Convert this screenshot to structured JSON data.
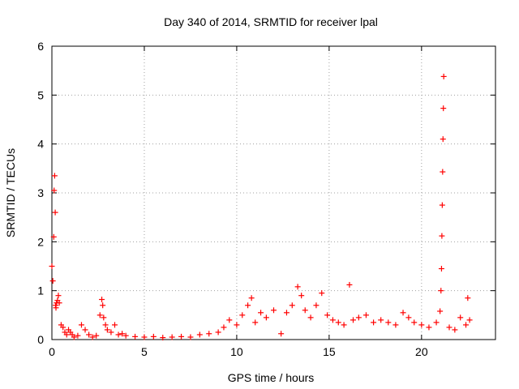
{
  "chart_data": {
    "type": "scatter",
    "title": "Day 340 of 2014, SRMTID for receiver lpal",
    "xlabel": "GPS time / hours",
    "ylabel": "SRMTID / TECUs",
    "xlim": [
      0,
      24
    ],
    "ylim": [
      0,
      6
    ],
    "xticks": [
      0,
      5,
      10,
      15,
      20
    ],
    "yticks": [
      0,
      1,
      2,
      3,
      4,
      5,
      6
    ],
    "xtick_labels": [
      "0",
      "5",
      "10",
      "15",
      "20"
    ],
    "ytick_labels": [
      "0",
      "1",
      "2",
      "3",
      "4",
      "5",
      "6"
    ],
    "grid": true,
    "marker": "+",
    "color": "#ff0000",
    "series": [
      {
        "name": "SRMTID",
        "x": [
          0.0,
          0.05,
          0.1,
          0.12,
          0.15,
          0.18,
          0.2,
          0.22,
          0.25,
          0.3,
          0.35,
          0.4,
          0.5,
          0.6,
          0.7,
          0.8,
          0.9,
          1.0,
          1.1,
          1.2,
          1.4,
          1.6,
          1.8,
          2.0,
          2.2,
          2.4,
          2.6,
          2.7,
          2.75,
          2.8,
          2.9,
          3.0,
          3.2,
          3.4,
          3.6,
          3.8,
          4.0,
          4.5,
          5.0,
          5.5,
          6.0,
          6.5,
          7.0,
          7.5,
          8.0,
          8.5,
          9.0,
          9.3,
          9.6,
          10.0,
          10.3,
          10.6,
          10.8,
          11.0,
          11.3,
          11.6,
          12.0,
          12.4,
          12.7,
          13.0,
          13.3,
          13.5,
          13.7,
          14.0,
          14.3,
          14.6,
          14.9,
          15.2,
          15.5,
          15.8,
          16.1,
          16.3,
          16.6,
          17.0,
          17.4,
          17.8,
          18.2,
          18.6,
          19.0,
          19.3,
          19.6,
          20.0,
          20.4,
          20.8,
          21.0,
          21.05,
          21.08,
          21.1,
          21.12,
          21.14,
          21.16,
          21.18,
          21.2,
          21.5,
          21.8,
          22.1,
          22.4,
          22.5,
          22.6
        ],
        "y": [
          1.5,
          1.2,
          2.1,
          3.05,
          3.35,
          2.6,
          0.7,
          0.65,
          0.75,
          0.8,
          0.9,
          0.75,
          0.3,
          0.25,
          0.15,
          0.1,
          0.2,
          0.15,
          0.1,
          0.05,
          0.08,
          0.3,
          0.2,
          0.1,
          0.05,
          0.08,
          0.5,
          0.82,
          0.7,
          0.45,
          0.3,
          0.2,
          0.15,
          0.3,
          0.1,
          0.12,
          0.08,
          0.06,
          0.05,
          0.06,
          0.04,
          0.05,
          0.06,
          0.05,
          0.1,
          0.12,
          0.15,
          0.25,
          0.4,
          0.3,
          0.5,
          0.7,
          0.85,
          0.35,
          0.55,
          0.45,
          0.6,
          0.12,
          0.55,
          0.7,
          1.08,
          0.9,
          0.6,
          0.45,
          0.7,
          0.95,
          0.5,
          0.4,
          0.35,
          0.3,
          1.12,
          0.4,
          0.45,
          0.5,
          0.35,
          0.4,
          0.35,
          0.3,
          0.55,
          0.45,
          0.35,
          0.3,
          0.25,
          0.35,
          0.58,
          1.0,
          1.45,
          2.12,
          2.75,
          3.43,
          4.1,
          4.73,
          5.38,
          0.25,
          0.2,
          0.45,
          0.3,
          0.85,
          0.4
        ]
      }
    ]
  }
}
